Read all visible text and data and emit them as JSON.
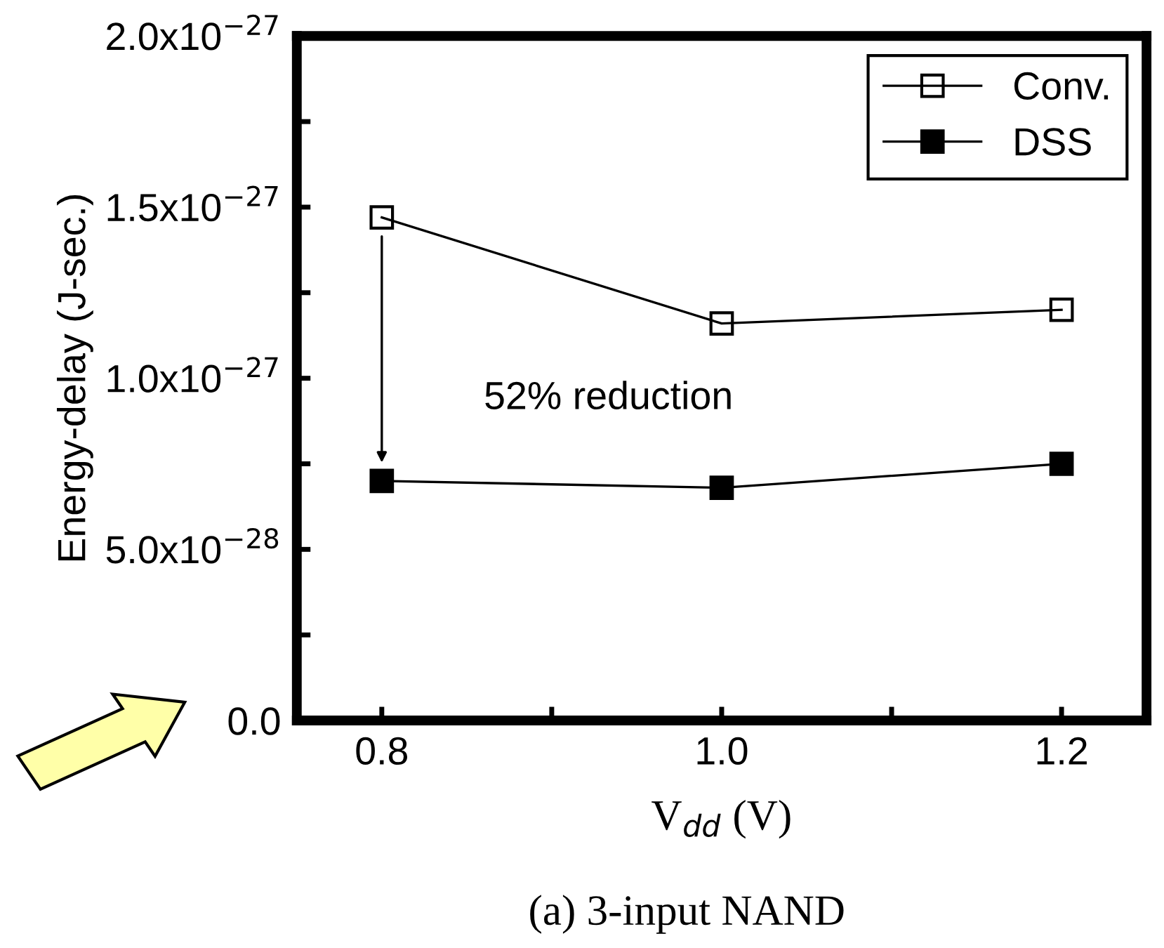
{
  "chart_data": {
    "type": "line",
    "title": "(a) 3-input NAND",
    "xlabel": "V$_{dd}$ (V)",
    "ylabel": "Energy-delay (J-sec.)",
    "x": [
      0.8,
      1.0,
      1.2
    ],
    "series": [
      {
        "name": "Conv.",
        "color": "#000000",
        "values": [
          1.47e-27,
          1.16e-27,
          1.2e-27
        ]
      },
      {
        "name": "DSS",
        "color": "#000000",
        "values": [
          7e-28,
          6.8e-28,
          7.5e-28
        ]
      }
    ],
    "annotations": [
      "52% reduction"
    ],
    "xlim": [
      0.75,
      1.25
    ],
    "xticks": [
      0.8,
      {
        "value": 0.9,
        "label": null
      },
      {
        "value": 1.0,
        "label": "1.0"
      },
      {
        "value": 1.1,
        "label": null
      },
      1.2
    ],
    "ylim": [
      0,
      2e-27
    ],
    "yticks": [
      {
        "value": 0,
        "label": "0.0"
      },
      {
        "value": 2.5e-28,
        "label": null
      },
      {
        "value": 5e-28,
        "label": "5.0x10$^{−28}$"
      },
      {
        "value": 7.5e-28,
        "label": null
      },
      {
        "value": 1e-27,
        "label": "1.0x10$^{−27}$"
      },
      {
        "value": 1.25e-27,
        "label": null
      },
      {
        "value": 1.5e-27,
        "label": "1.5x10$^{−27}$"
      },
      {
        "value": 1.75e-27,
        "label": null
      },
      {
        "value": 2e-27,
        "label": "2.0x10$^{−27}$"
      }
    ],
    "marker": "square",
    "line_style": "solid",
    "grid": false,
    "legend": "top right"
  }
}
